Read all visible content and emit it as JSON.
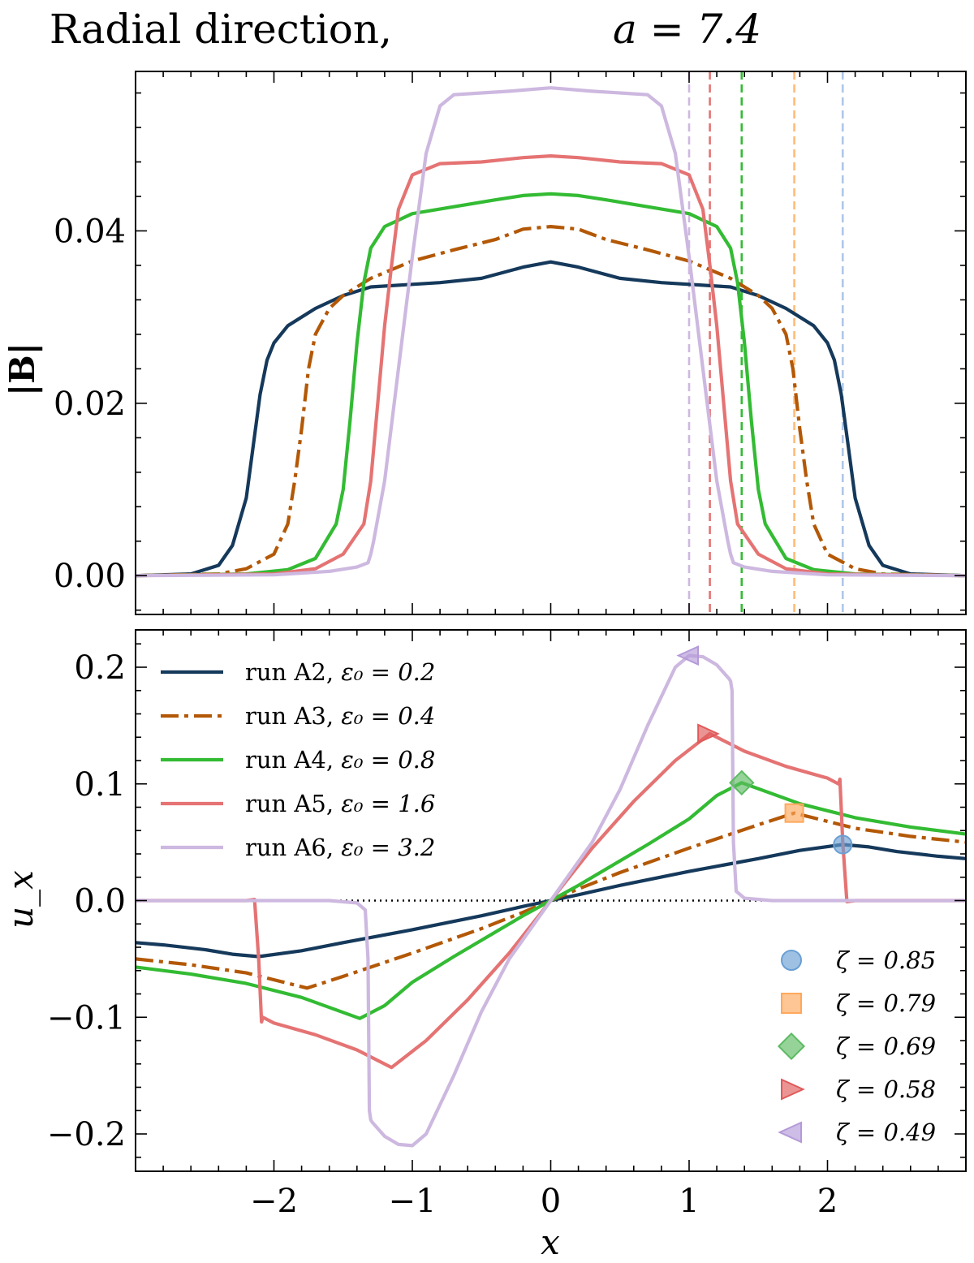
{
  "chart_data": [
    {
      "type": "line",
      "title_main": "Radial direction,",
      "title_math": "a = 7.4",
      "xlabel": "",
      "ylabel": "|B|",
      "xlim": [
        -3.0,
        3.0
      ],
      "ylim": [
        -0.0045,
        0.0585
      ],
      "yticks": [
        {
          "value": 0.0,
          "label": "0.00"
        },
        {
          "value": 0.02,
          "label": "0.02"
        },
        {
          "value": 0.04,
          "label": "0.04"
        }
      ],
      "series": [
        {
          "name": "run A2",
          "color": "#15395b",
          "dash": "solid",
          "x": [
            -3.0,
            -2.6,
            -2.4,
            -2.3,
            -2.2,
            -2.15,
            -2.1,
            -2.05,
            -2.0,
            -1.9,
            -1.7,
            -1.5,
            -1.3,
            -1.0,
            -0.8,
            -0.5,
            -0.2,
            0.0,
            0.2,
            0.5,
            0.8,
            1.0,
            1.3,
            1.5,
            1.7,
            1.9,
            2.0,
            2.05,
            2.1,
            2.15,
            2.2,
            2.3,
            2.4,
            2.6,
            3.0
          ],
          "y": [
            0.0,
            0.0002,
            0.0012,
            0.0035,
            0.009,
            0.015,
            0.021,
            0.025,
            0.027,
            0.029,
            0.031,
            0.0325,
            0.0335,
            0.0338,
            0.034,
            0.0345,
            0.0358,
            0.0364,
            0.0358,
            0.0345,
            0.034,
            0.0338,
            0.0335,
            0.0325,
            0.031,
            0.029,
            0.027,
            0.025,
            0.021,
            0.015,
            0.009,
            0.0035,
            0.0012,
            0.0002,
            0.0
          ]
        },
        {
          "name": "run A3",
          "color": "#b35806",
          "dash": "dashdot",
          "x": [
            -3.0,
            -2.4,
            -2.2,
            -2.0,
            -1.9,
            -1.85,
            -1.8,
            -1.75,
            -1.7,
            -1.6,
            -1.5,
            -1.3,
            -1.0,
            -0.7,
            -0.4,
            -0.2,
            0.0,
            0.2,
            0.4,
            0.7,
            1.0,
            1.3,
            1.5,
            1.6,
            1.7,
            1.75,
            1.8,
            1.85,
            1.9,
            2.0,
            2.2,
            2.4,
            3.0
          ],
          "y": [
            0.0,
            0.0002,
            0.0008,
            0.0025,
            0.006,
            0.011,
            0.017,
            0.024,
            0.028,
            0.031,
            0.0325,
            0.0345,
            0.0365,
            0.0378,
            0.039,
            0.0402,
            0.0405,
            0.0402,
            0.039,
            0.0378,
            0.0365,
            0.0345,
            0.0325,
            0.031,
            0.028,
            0.024,
            0.017,
            0.011,
            0.006,
            0.0025,
            0.0008,
            0.0002,
            0.0
          ]
        },
        {
          "name": "run A4",
          "color": "#33bb33",
          "dash": "solid",
          "x": [
            -3.0,
            -2.2,
            -1.9,
            -1.7,
            -1.55,
            -1.5,
            -1.45,
            -1.4,
            -1.35,
            -1.3,
            -1.2,
            -1.0,
            -0.7,
            -0.4,
            -0.2,
            0.0,
            0.2,
            0.4,
            0.7,
            1.0,
            1.2,
            1.3,
            1.35,
            1.4,
            1.45,
            1.5,
            1.55,
            1.7,
            1.9,
            2.2,
            3.0
          ],
          "y": [
            0.0,
            0.0002,
            0.0007,
            0.002,
            0.006,
            0.01,
            0.018,
            0.027,
            0.034,
            0.038,
            0.0405,
            0.042,
            0.0428,
            0.0436,
            0.0441,
            0.0443,
            0.0441,
            0.0436,
            0.0428,
            0.042,
            0.0405,
            0.038,
            0.034,
            0.027,
            0.018,
            0.01,
            0.006,
            0.002,
            0.0007,
            0.0002,
            0.0
          ]
        },
        {
          "name": "run A5",
          "color": "#e57373",
          "dash": "solid",
          "x": [
            -3.0,
            -2.0,
            -1.7,
            -1.5,
            -1.35,
            -1.3,
            -1.25,
            -1.2,
            -1.15,
            -1.1,
            -1.0,
            -0.8,
            -0.5,
            -0.2,
            0.0,
            0.2,
            0.5,
            0.8,
            1.0,
            1.1,
            1.15,
            1.2,
            1.25,
            1.3,
            1.35,
            1.5,
            1.7,
            2.0,
            3.0
          ],
          "y": [
            0.0,
            0.0002,
            0.0008,
            0.0025,
            0.006,
            0.011,
            0.02,
            0.029,
            0.036,
            0.0425,
            0.0465,
            0.0478,
            0.048,
            0.0485,
            0.0487,
            0.0485,
            0.048,
            0.0478,
            0.0465,
            0.0425,
            0.036,
            0.029,
            0.02,
            0.011,
            0.006,
            0.0025,
            0.0008,
            0.0002,
            0.0
          ]
        },
        {
          "name": "run A6",
          "color": "#cdb8e0",
          "dash": "solid",
          "x": [
            -3.0,
            -2.0,
            -1.6,
            -1.4,
            -1.32,
            -1.3,
            -1.28,
            -1.2,
            -1.1,
            -1.0,
            -0.95,
            -0.9,
            -0.8,
            -0.7,
            -0.5,
            -0.3,
            0.0,
            0.3,
            0.5,
            0.7,
            0.8,
            0.9,
            0.95,
            1.0,
            1.1,
            1.2,
            1.28,
            1.3,
            1.32,
            1.4,
            1.6,
            2.0,
            3.0
          ],
          "y": [
            0.0,
            0.0001,
            0.0005,
            0.001,
            0.0015,
            0.0025,
            0.004,
            0.011,
            0.024,
            0.037,
            0.043,
            0.049,
            0.0545,
            0.0558,
            0.056,
            0.0562,
            0.0566,
            0.0562,
            0.056,
            0.0558,
            0.0545,
            0.049,
            0.043,
            0.037,
            0.024,
            0.011,
            0.004,
            0.0025,
            0.0015,
            0.001,
            0.0005,
            0.0001,
            0.0
          ]
        }
      ],
      "vlines": [
        {
          "x": 1.0,
          "color": "#cdb8e0"
        },
        {
          "x": 1.15,
          "color": "#e57373"
        },
        {
          "x": 1.38,
          "color": "#33bb33"
        },
        {
          "x": 1.76,
          "color": "#ffbb78"
        },
        {
          "x": 2.11,
          "color": "#aec7e8"
        }
      ]
    },
    {
      "type": "line",
      "xlabel": "x",
      "ylabel": "u_x",
      "xlim": [
        -3.0,
        3.0
      ],
      "ylim": [
        -0.232,
        0.232
      ],
      "xticks": [
        {
          "value": -2,
          "label": "−2"
        },
        {
          "value": -1,
          "label": "−1"
        },
        {
          "value": 0,
          "label": "0"
        },
        {
          "value": 1,
          "label": "1"
        },
        {
          "value": 2,
          "label": "2"
        }
      ],
      "yticks": [
        {
          "value": -0.2,
          "label": "−0.2"
        },
        {
          "value": -0.1,
          "label": "−0.1"
        },
        {
          "value": 0.0,
          "label": "0.0"
        },
        {
          "value": 0.1,
          "label": "0.1"
        },
        {
          "value": 0.2,
          "label": "0.2"
        }
      ],
      "zero_line": true,
      "series": [
        {
          "name": "run A2",
          "eps_label": "ε₀ = 0.2",
          "color": "#15395b",
          "dash": "solid",
          "x": [
            -3.0,
            -2.8,
            -2.5,
            -2.3,
            -2.11,
            -1.8,
            -1.5,
            -1.0,
            -0.5,
            -0.2,
            0.0,
            0.2,
            0.5,
            1.0,
            1.5,
            1.8,
            2.11,
            2.3,
            2.5,
            2.8,
            3.0
          ],
          "y": [
            -0.036,
            -0.038,
            -0.042,
            -0.046,
            -0.048,
            -0.043,
            -0.036,
            -0.025,
            -0.013,
            -0.005,
            0.0,
            0.005,
            0.013,
            0.025,
            0.036,
            0.043,
            0.048,
            0.046,
            0.042,
            0.038,
            0.036
          ]
        },
        {
          "name": "run A3",
          "eps_label": "ε₀ = 0.4",
          "color": "#b35806",
          "dash": "dashdot",
          "x": [
            -3.0,
            -2.6,
            -2.2,
            -1.76,
            -1.5,
            -1.0,
            -0.5,
            -0.2,
            0.0,
            0.2,
            0.5,
            1.0,
            1.5,
            1.76,
            2.2,
            2.6,
            3.0
          ],
          "y": [
            -0.05,
            -0.055,
            -0.062,
            -0.075,
            -0.065,
            -0.045,
            -0.024,
            -0.01,
            0.0,
            0.01,
            0.024,
            0.045,
            0.065,
            0.075,
            0.062,
            0.055,
            0.05
          ]
        },
        {
          "name": "run A4",
          "eps_label": "ε₀ = 0.8",
          "color": "#33bb33",
          "dash": "solid",
          "x": [
            -3.0,
            -2.6,
            -2.2,
            -1.8,
            -1.38,
            -1.2,
            -1.0,
            -0.7,
            -0.4,
            -0.2,
            0.0,
            0.2,
            0.4,
            0.7,
            1.0,
            1.2,
            1.38,
            1.8,
            2.2,
            2.6,
            3.0
          ],
          "y": [
            -0.057,
            -0.063,
            -0.071,
            -0.083,
            -0.101,
            -0.09,
            -0.07,
            -0.048,
            -0.027,
            -0.013,
            0.0,
            0.013,
            0.027,
            0.048,
            0.07,
            0.09,
            0.101,
            0.083,
            0.071,
            0.063,
            0.057
          ]
        },
        {
          "name": "run A5",
          "eps_label": "ε₀ = 1.6",
          "color": "#e57373",
          "dash": "solid",
          "x": [
            -3.0,
            -2.2,
            -2.14,
            -2.11,
            -2.09,
            -2.08,
            -2.0,
            -1.7,
            -1.4,
            -1.15,
            -0.9,
            -0.6,
            -0.3,
            0.0,
            0.3,
            0.6,
            0.9,
            1.15,
            1.4,
            1.7,
            2.0,
            2.08,
            2.09,
            2.11,
            2.14,
            2.2,
            3.0
          ],
          "y": [
            0.0,
            0.0,
            0.001,
            -0.05,
            -0.104,
            -0.1,
            -0.105,
            -0.115,
            -0.128,
            -0.143,
            -0.12,
            -0.085,
            -0.045,
            0.0,
            0.045,
            0.085,
            0.12,
            0.143,
            0.128,
            0.115,
            0.105,
            0.1,
            0.104,
            0.05,
            -0.001,
            0.0,
            0.0
          ]
        },
        {
          "name": "run A6",
          "eps_label": "ε₀ = 3.2",
          "color": "#cdb8e0",
          "dash": "solid",
          "x": [
            -3.0,
            -1.6,
            -1.4,
            -1.34,
            -1.32,
            -1.31,
            -1.3,
            -1.29,
            -1.2,
            -1.1,
            -1.0,
            -0.9,
            -0.7,
            -0.5,
            -0.3,
            0.0,
            0.3,
            0.5,
            0.7,
            0.9,
            1.0,
            1.1,
            1.2,
            1.29,
            1.3,
            1.31,
            1.32,
            1.34,
            1.4,
            1.6,
            3.0
          ],
          "y": [
            0.0,
            0.0,
            -0.002,
            -0.008,
            -0.05,
            -0.18,
            -0.188,
            -0.19,
            -0.202,
            -0.209,
            -0.21,
            -0.2,
            -0.15,
            -0.095,
            -0.05,
            0.0,
            0.05,
            0.095,
            0.15,
            0.2,
            0.21,
            0.209,
            0.202,
            0.19,
            0.188,
            0.18,
            0.05,
            0.008,
            0.002,
            0.0,
            0.0
          ]
        }
      ],
      "markers": [
        {
          "zeta_label": "ζ = 0.85",
          "shape": "circle",
          "color": "#6a9fd4",
          "x": 2.11,
          "y": 0.048
        },
        {
          "zeta_label": "ζ = 0.79",
          "shape": "square",
          "color": "#ffa85c",
          "x": 1.76,
          "y": 0.075
        },
        {
          "zeta_label": "ζ = 0.69",
          "shape": "diamond",
          "color": "#5dbb63",
          "x": 1.38,
          "y": 0.101
        },
        {
          "zeta_label": "ζ = 0.58",
          "shape": "triangle-right",
          "color": "#e05a5a",
          "x": 1.13,
          "y": 0.143
        },
        {
          "zeta_label": "ζ = 0.49",
          "shape": "triangle-left",
          "color": "#b49ad8",
          "x": 1.0,
          "y": 0.21
        }
      ]
    }
  ]
}
